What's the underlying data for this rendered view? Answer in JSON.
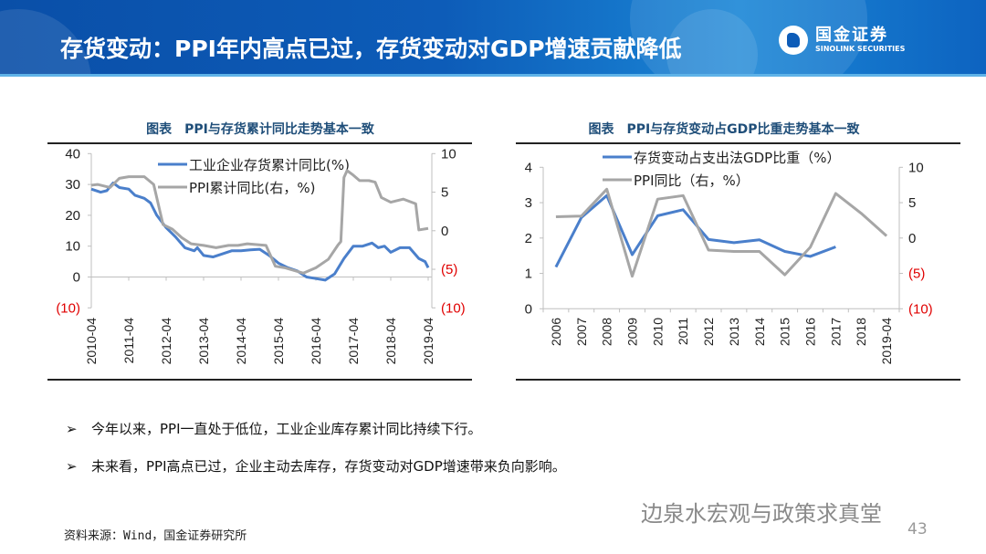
{
  "header": {
    "title": "存货变动：PPI年内高点已过，存货变动对GDP增速贡献降低",
    "logo_cn": "国金证券",
    "logo_en": "SINOLINK SECURITIES",
    "background_color": "#0d5cb8"
  },
  "bullets": [
    {
      "icon": "arrow-bullet-icon",
      "symbol": "➢",
      "text": "今年以来，PPI一直处于低位，工业企业库存累计同比持续下行。"
    },
    {
      "icon": "arrow-bullet-icon",
      "symbol": "➢",
      "text": "未来看，PPI高点已过，企业主动去库存，存货变动对GDP增速带来负向影响。"
    }
  ],
  "source": "资料来源：Wind，国金证券研究所",
  "watermark": "边泉水宏观与政策求真堂",
  "page_number": "43",
  "chart_data": [
    {
      "type": "line",
      "title": "图表　PPI与存货累计同比走势基本一致",
      "x_tick_labels": [
        "2010-04",
        "2011-04",
        "2012-04",
        "2013-04",
        "2014-04",
        "2015-04",
        "2016-04",
        "2017-04",
        "2018-04",
        "2019-04"
      ],
      "xlim": [
        "2010-04",
        "2019-04"
      ],
      "ylim_left": [
        -10,
        40
      ],
      "ylim_right": [
        -10,
        10
      ],
      "y_left_ticks": [
        {
          "v": 40,
          "label": "40"
        },
        {
          "v": 30,
          "label": "30"
        },
        {
          "v": 20,
          "label": "20"
        },
        {
          "v": 10,
          "label": "10"
        },
        {
          "v": 0,
          "label": "0"
        },
        {
          "v": -10,
          "label": "(10)"
        }
      ],
      "y_right_ticks": [
        {
          "v": 10,
          "label": "10"
        },
        {
          "v": 5,
          "label": "5"
        },
        {
          "v": 0,
          "label": "0"
        },
        {
          "v": -5,
          "label": "(5)"
        },
        {
          "v": -10,
          "label": "(10)"
        }
      ],
      "negative_label_color": "#e00000",
      "grid": false,
      "legend_position": "top-left",
      "series": [
        {
          "name": "工业企业存货累计同比(%)",
          "axis": "left",
          "color": "#4a7fcb",
          "x": [
            "2010-04",
            "2010-07",
            "2010-09",
            "2010-11",
            "2011-01",
            "2011-04",
            "2011-06",
            "2011-09",
            "2011-11",
            "2012-01",
            "2012-04",
            "2012-07",
            "2012-10",
            "2013-01",
            "2013-02",
            "2013-04",
            "2013-07",
            "2013-10",
            "2014-01",
            "2014-04",
            "2014-07",
            "2014-10",
            "2015-01",
            "2015-04",
            "2015-07",
            "2015-10",
            "2016-01",
            "2016-04",
            "2016-07",
            "2016-10",
            "2017-01",
            "2017-04",
            "2017-07",
            "2017-10",
            "2017-12",
            "2018-02",
            "2018-04",
            "2018-07",
            "2018-10",
            "2019-01",
            "2019-03",
            "2019-04"
          ],
          "y": [
            28.5,
            27.5,
            28,
            30.5,
            29,
            28.5,
            26.5,
            25.5,
            24,
            20,
            16,
            13,
            9.5,
            8.5,
            9.5,
            7,
            6.5,
            7.5,
            8.5,
            8.5,
            8.8,
            9,
            7,
            4.5,
            3,
            2,
            0,
            -0.5,
            -1,
            1,
            6,
            10,
            10,
            11,
            9.5,
            10,
            8,
            9.5,
            9.5,
            6,
            5,
            3
          ]
        },
        {
          "name": "PPI累计同比(右，%)",
          "axis": "right",
          "color": "#a6a6a6",
          "x": [
            "2010-04",
            "2010-06",
            "2010-10",
            "2011-01",
            "2011-04",
            "2011-09",
            "2011-12",
            "2012-03",
            "2012-06",
            "2012-09",
            "2012-12",
            "2013-04",
            "2013-08",
            "2013-12",
            "2014-03",
            "2014-06",
            "2014-12",
            "2015-03",
            "2015-06",
            "2015-12",
            "2016-04",
            "2016-08",
            "2016-11",
            "2016-12",
            "2017-01",
            "2017-02",
            "2017-04",
            "2017-06",
            "2017-09",
            "2017-11",
            "2018-01",
            "2018-04",
            "2018-08",
            "2018-12",
            "2019-01",
            "2019-04"
          ],
          "y": [
            5.9,
            6.0,
            5.6,
            6.8,
            7.0,
            7.0,
            6.0,
            0.8,
            0.2,
            -0.9,
            -1.7,
            -1.9,
            -2.2,
            -1.9,
            -1.9,
            -1.7,
            -1.9,
            -4.6,
            -4.8,
            -5.5,
            -4.8,
            -3.7,
            -1.9,
            -1.4,
            6.9,
            7.8,
            7.2,
            6.5,
            6.5,
            6.3,
            4.3,
            3.7,
            4.1,
            3.5,
            0.1,
            0.3
          ]
        }
      ]
    },
    {
      "type": "line",
      "title": "图表　PPI与存货变动占GDP比重走势基本一致",
      "categories": [
        "2006",
        "2007",
        "2008",
        "2009",
        "2010",
        "2011",
        "2012",
        "2013",
        "2014",
        "2015",
        "2016",
        "2017",
        "2018",
        "2019-04"
      ],
      "ylim_left": [
        0,
        4
      ],
      "ylim_right": [
        -10,
        10
      ],
      "y_left_ticks": [
        {
          "v": 4,
          "label": "4"
        },
        {
          "v": 3,
          "label": "3"
        },
        {
          "v": 2,
          "label": "2"
        },
        {
          "v": 1,
          "label": "1"
        },
        {
          "v": 0,
          "label": "0"
        }
      ],
      "y_right_ticks": [
        {
          "v": 10,
          "label": "10"
        },
        {
          "v": 5,
          "label": "5"
        },
        {
          "v": 0,
          "label": "0"
        },
        {
          "v": -5,
          "label": "(5)"
        },
        {
          "v": -10,
          "label": "(10)"
        }
      ],
      "negative_label_color": "#e00000",
      "grid": false,
      "legend_position": "top-left",
      "series": [
        {
          "name": "存货变动占支出法GDP比重（%）",
          "axis": "left",
          "color": "#4a7fcb",
          "values": [
            1.18,
            2.58,
            3.2,
            1.53,
            2.63,
            2.8,
            1.96,
            1.87,
            1.95,
            1.62,
            1.48,
            1.75,
            null,
            null
          ]
        },
        {
          "name": "PPI同比（右，%）",
          "axis": "right",
          "color": "#a6a6a6",
          "values": [
            3.0,
            3.1,
            6.9,
            -5.4,
            5.5,
            6.0,
            -1.7,
            -1.9,
            -1.9,
            -5.2,
            -1.3,
            6.3,
            3.5,
            0.3
          ]
        }
      ]
    }
  ]
}
